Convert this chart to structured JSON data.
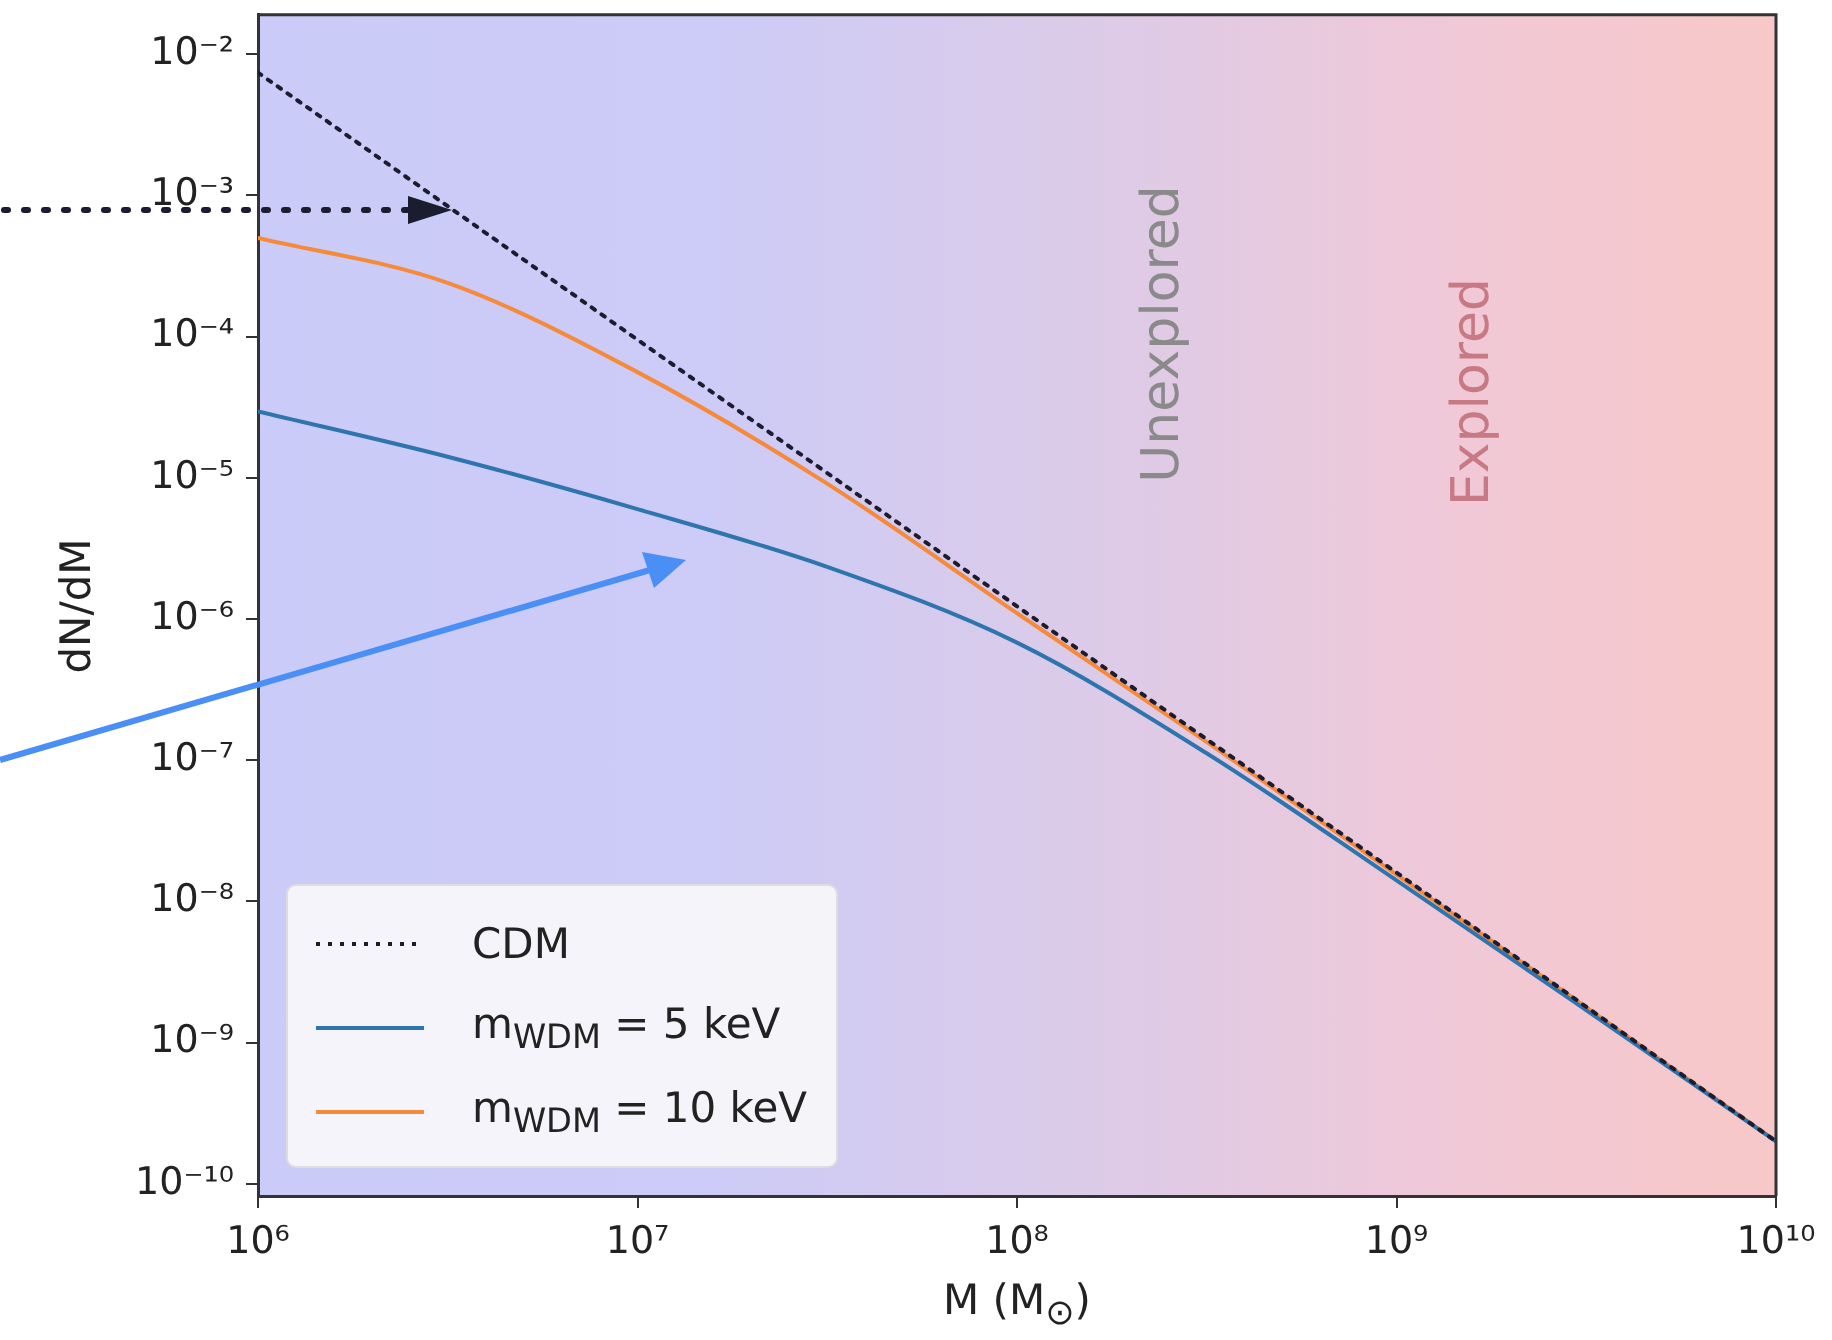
{
  "chart_data": {
    "type": "line",
    "xlabel": "M (M$_{⊙}$)",
    "ylabel": "dN/dM",
    "log": "xy",
    "legend": "bottom left",
    "marker": "none",
    "grid": false,
    "xlim": [
      1000000,
      10000000000
    ],
    "xticks": [
      {
        "value": 1000000,
        "label": "10⁶"
      },
      {
        "value": 10000000,
        "label": "10⁷"
      },
      {
        "value": 100000000,
        "label": "10⁸"
      },
      {
        "value": 1000000000,
        "label": "10⁹"
      },
      {
        "value": 10000000000,
        "label": "10¹⁰"
      }
    ],
    "ylim": [
      8.2e-11,
      0.019
    ],
    "yticks": [
      {
        "value": 1e-10,
        "label": "10⁻¹⁰"
      },
      {
        "value": 1e-09,
        "label": "10⁻⁹"
      },
      {
        "value": 1e-08,
        "label": "10⁻⁸"
      },
      {
        "value": 1e-07,
        "label": "10⁻⁷"
      },
      {
        "value": 1e-06,
        "label": "10⁻⁶"
      },
      {
        "value": 1e-05,
        "label": "10⁻⁵"
      },
      {
        "value": 0.0001,
        "label": "10⁻⁴"
      },
      {
        "value": 0.001,
        "label": "10⁻³"
      },
      {
        "value": 0.01,
        "label": "10⁻²"
      }
    ],
    "annotations": [
      "Unexplored",
      "Explored"
    ],
    "series": [
      {
        "name": "CDM",
        "color": "#1c1c30",
        "line_style": "dotted",
        "x": [
          1000000,
          10000000,
          100000000,
          1000000000,
          10000000000
        ],
        "values": [
          0.0074,
          9.5e-05,
          1.23e-06,
          1.6e-08,
          2e-10
        ]
      },
      {
        "name": "m$_{WDM}$ = 5 keV",
        "color": "#2e75ae",
        "line_style": "solid",
        "x": [
          1000000,
          3160000,
          10000000,
          31600000,
          100000000,
          316000000,
          1000000000,
          3160000000,
          10000000000
        ],
        "values": [
          2.95e-05,
          1.41e-05,
          6e-06,
          2.34e-06,
          6.8e-07,
          1.12e-07,
          1.41e-08,
          1.7e-09,
          2e-10
        ]
      },
      {
        "name": "m$_{WDM}$ = 10 keV",
        "color": "#f58a3a",
        "line_style": "solid",
        "x": [
          1000000,
          3160000,
          10000000,
          31600000,
          100000000,
          316000000,
          1000000000,
          3160000000,
          10000000000
        ],
        "values": [
          0.0005,
          0.00024,
          5.6e-05,
          9.1e-06,
          1.1e-06,
          1.35e-07,
          1.55e-08,
          1.78e-09,
          2e-10
        ]
      }
    ]
  }
}
